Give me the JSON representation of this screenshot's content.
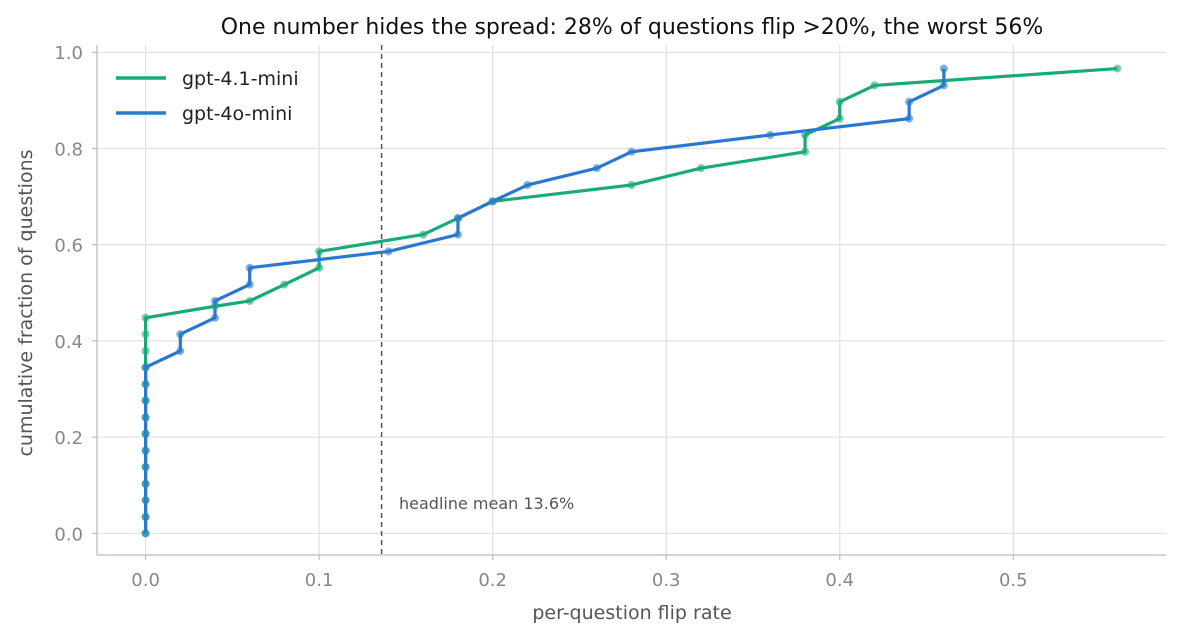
{
  "chart_data": {
    "type": "line",
    "title": "One number hides the spread: 28% of questions flip >20%, the worst 56%",
    "xlabel": "per-question flip rate",
    "ylabel": "cumulative fraction of questions",
    "xlim": [
      -0.028,
      0.588
    ],
    "ylim": [
      -0.045,
      1.015
    ],
    "xticks": [
      0.0,
      0.1,
      0.2,
      0.3,
      0.4,
      0.5
    ],
    "xtick_labels": [
      "0.0",
      "0.1",
      "0.2",
      "0.3",
      "0.4",
      "0.5"
    ],
    "yticks": [
      0.0,
      0.2,
      0.4,
      0.6,
      0.8,
      1.0
    ],
    "ytick_labels": [
      "0.0",
      "0.2",
      "0.4",
      "0.6",
      "0.8",
      "1.0"
    ],
    "grid": true,
    "legend_position": "top-left",
    "reference_line": {
      "x": 0.136,
      "label": "headline mean 13.6%",
      "color": "#555555"
    },
    "series": [
      {
        "name": "gpt-4.1-mini",
        "color": "#1aaa7a",
        "points": [
          [
            0.0,
            0.0
          ],
          [
            0.0,
            0.034
          ],
          [
            0.0,
            0.069
          ],
          [
            0.0,
            0.103
          ],
          [
            0.0,
            0.138
          ],
          [
            0.0,
            0.172
          ],
          [
            0.0,
            0.207
          ],
          [
            0.0,
            0.241
          ],
          [
            0.0,
            0.276
          ],
          [
            0.0,
            0.31
          ],
          [
            0.0,
            0.345
          ],
          [
            0.0,
            0.379
          ],
          [
            0.0,
            0.414
          ],
          [
            0.0,
            0.448
          ],
          [
            0.04,
            0.472
          ],
          [
            0.06,
            0.483
          ],
          [
            0.08,
            0.517
          ],
          [
            0.1,
            0.552
          ],
          [
            0.1,
            0.586
          ],
          [
            0.16,
            0.621
          ],
          [
            0.18,
            0.655
          ],
          [
            0.2,
            0.69
          ],
          [
            0.28,
            0.724
          ],
          [
            0.32,
            0.759
          ],
          [
            0.38,
            0.793
          ],
          [
            0.38,
            0.828
          ],
          [
            0.4,
            0.862
          ],
          [
            0.4,
            0.897
          ],
          [
            0.42,
            0.931
          ],
          [
            0.56,
            0.966
          ]
        ]
      },
      {
        "name": "gpt-4o-mini",
        "color": "#2a78d0",
        "points": [
          [
            0.0,
            0.0
          ],
          [
            0.0,
            0.034
          ],
          [
            0.0,
            0.069
          ],
          [
            0.0,
            0.103
          ],
          [
            0.0,
            0.138
          ],
          [
            0.0,
            0.172
          ],
          [
            0.0,
            0.207
          ],
          [
            0.0,
            0.241
          ],
          [
            0.0,
            0.276
          ],
          [
            0.0,
            0.31
          ],
          [
            0.0,
            0.345
          ],
          [
            0.02,
            0.379
          ],
          [
            0.02,
            0.414
          ],
          [
            0.04,
            0.448
          ],
          [
            0.04,
            0.483
          ],
          [
            0.06,
            0.517
          ],
          [
            0.06,
            0.552
          ],
          [
            0.14,
            0.586
          ],
          [
            0.18,
            0.621
          ],
          [
            0.18,
            0.655
          ],
          [
            0.2,
            0.69
          ],
          [
            0.22,
            0.724
          ],
          [
            0.26,
            0.759
          ],
          [
            0.28,
            0.793
          ],
          [
            0.36,
            0.828
          ],
          [
            0.44,
            0.862
          ],
          [
            0.44,
            0.897
          ],
          [
            0.46,
            0.931
          ],
          [
            0.46,
            0.966
          ]
        ]
      }
    ]
  }
}
